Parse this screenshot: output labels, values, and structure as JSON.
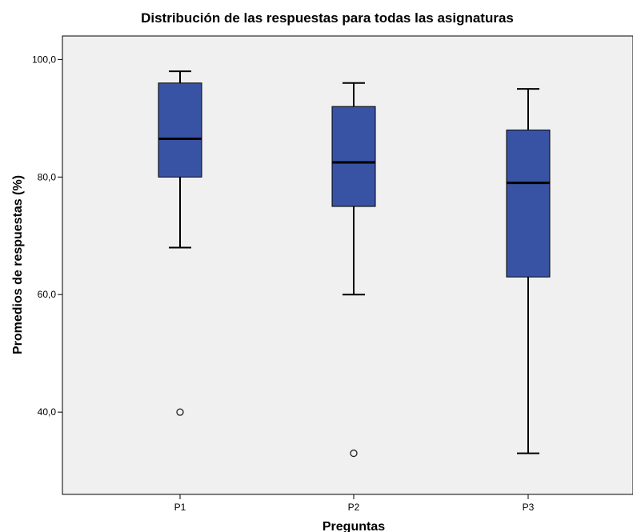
{
  "chart_data": {
    "type": "boxplot",
    "title": "Distribución de las respuestas para todas las asignaturas",
    "xlabel": "Preguntas",
    "ylabel": "Promedios de respuestas (%)",
    "ylim": [
      26.0,
      104.0
    ],
    "yticks": [
      40,
      60,
      80,
      100
    ],
    "ytick_labels": [
      "40,0",
      "60,0",
      "80,0",
      "100,0"
    ],
    "categories": [
      "P1",
      "P2",
      "P3"
    ],
    "boxes": [
      {
        "category": "P1",
        "whisker_low": 68,
        "q1": 80,
        "median": 86.5,
        "q3": 96,
        "whisker_high": 98,
        "outliers": [
          40
        ]
      },
      {
        "category": "P2",
        "whisker_low": 60,
        "q1": 75,
        "median": 82.5,
        "q3": 92,
        "whisker_high": 96,
        "outliers": [
          33
        ]
      },
      {
        "category": "P3",
        "whisker_low": 33,
        "q1": 63,
        "median": 79,
        "q3": 88,
        "whisker_high": 95,
        "outliers": []
      }
    ],
    "grid": false,
    "colors": {
      "box_fill": "#3953a4",
      "plot_background": "#f0f0f0",
      "lines": "#000000"
    }
  }
}
